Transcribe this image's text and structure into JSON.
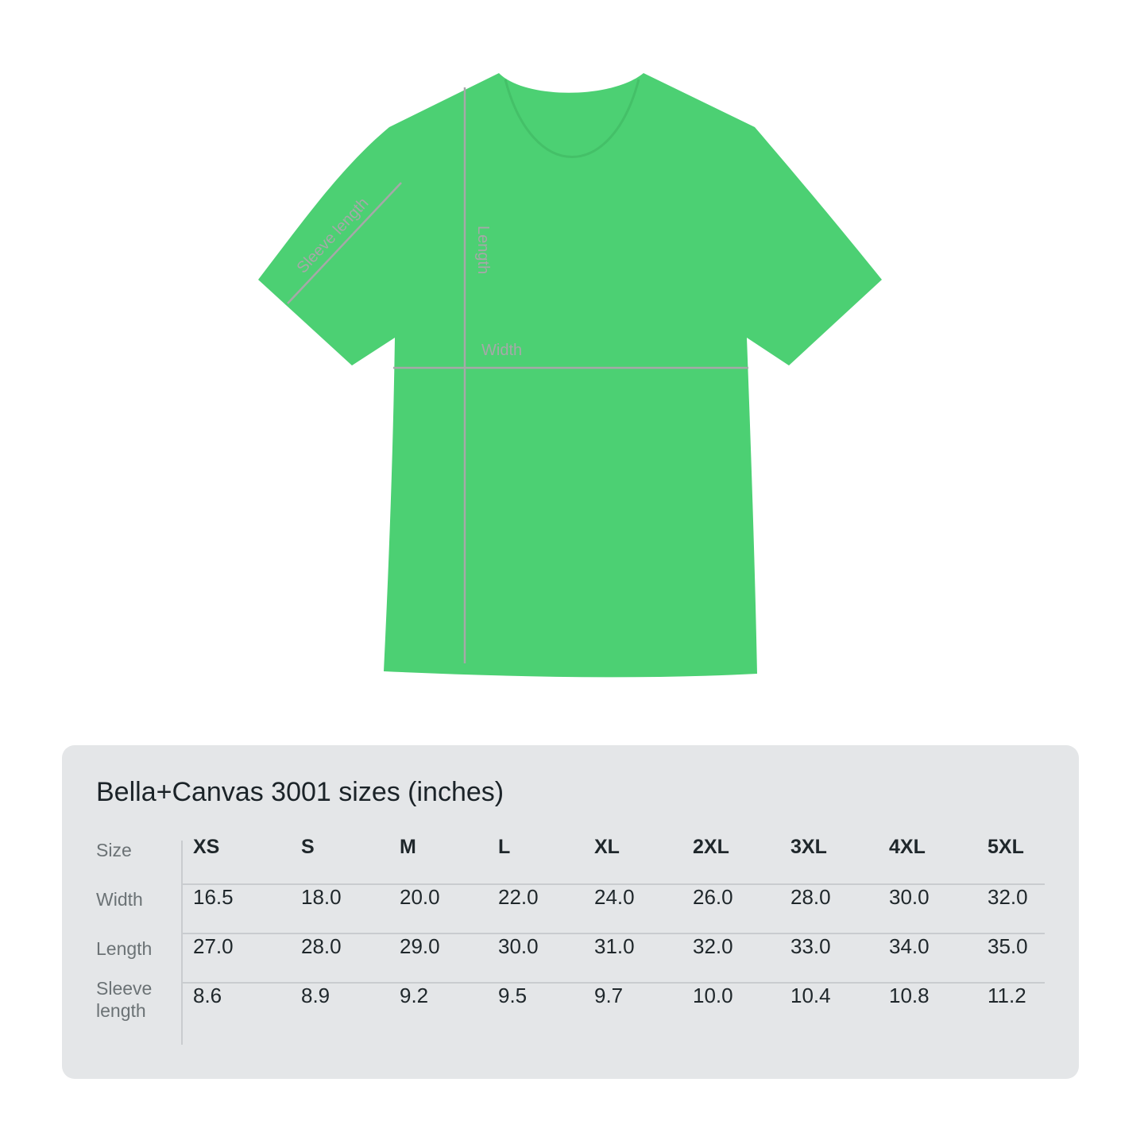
{
  "product": {
    "garment_color": "#4cd073",
    "measure_line_color": "#a6a8a8",
    "labels": {
      "sleeve": "Sleeve length",
      "length": "Length",
      "width": "Width"
    }
  },
  "size_table": {
    "title": "Bella+Canvas 3001 sizes (inches)",
    "row_headers": [
      "Size",
      "Width",
      "Length",
      "Sleeve length"
    ],
    "sizes": [
      "XS",
      "S",
      "M",
      "L",
      "XL",
      "2XL",
      "3XL",
      "4XL",
      "5XL"
    ],
    "rows": [
      [
        "16.5",
        "18.0",
        "20.0",
        "22.0",
        "24.0",
        "26.0",
        "28.0",
        "30.0",
        "32.0"
      ],
      [
        "27.0",
        "28.0",
        "29.0",
        "30.0",
        "31.0",
        "32.0",
        "33.0",
        "34.0",
        "35.0"
      ],
      [
        "8.6",
        "8.9",
        "9.2",
        "9.5",
        "9.7",
        "10.0",
        "10.4",
        "10.8",
        "11.2"
      ]
    ]
  }
}
